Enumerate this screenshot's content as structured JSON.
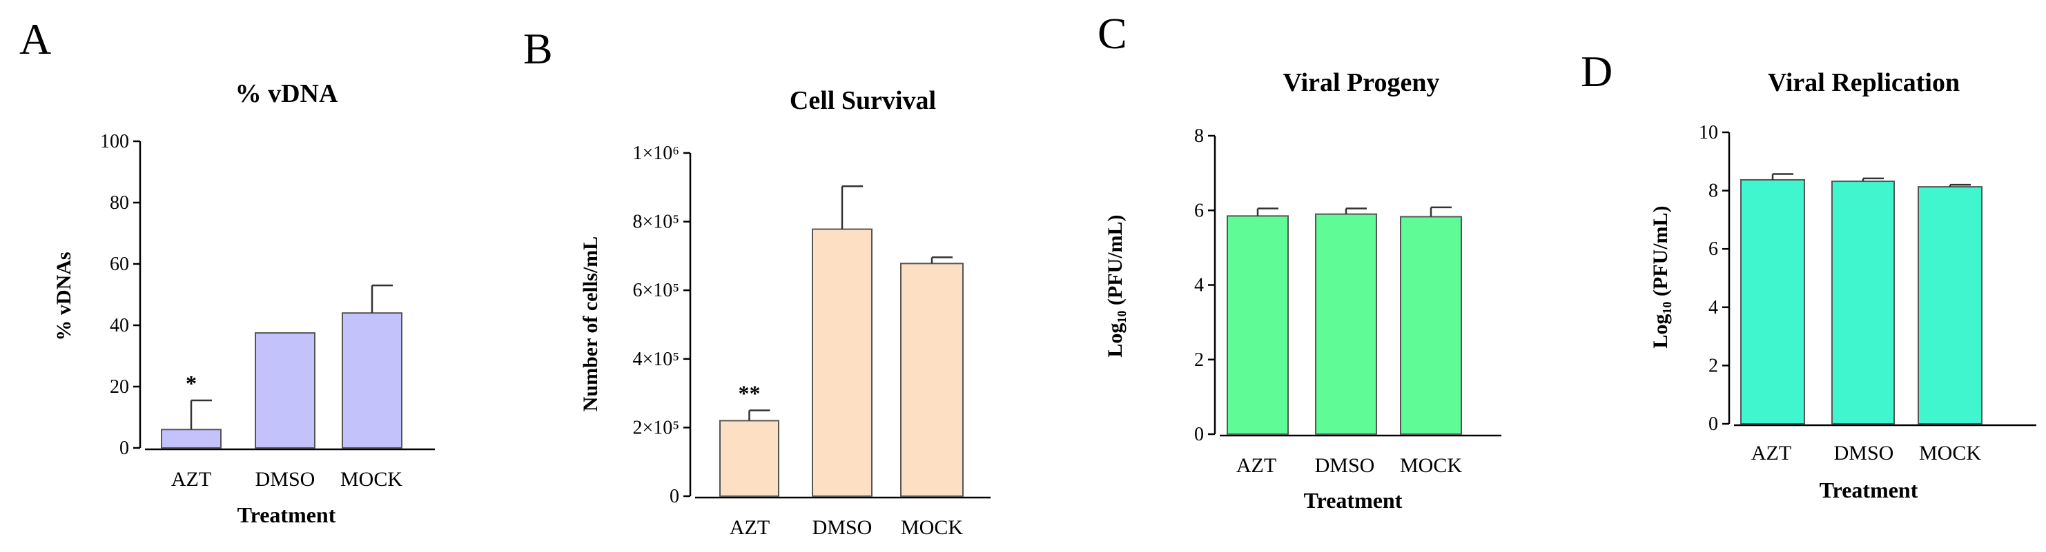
{
  "chart_data": [
    {
      "type": "bar",
      "panel": "A",
      "title": "% vDNA",
      "xlabel": "Treatment",
      "ylabel": "% vDNAs",
      "categories": [
        "AZT",
        "DMSO",
        "MOCK"
      ],
      "values": [
        6,
        37.5,
        44
      ],
      "errors": [
        9.5,
        0,
        9
      ],
      "annotations": [
        "*",
        "",
        ""
      ],
      "ylim": [
        0,
        100
      ],
      "yticks": [
        "0",
        "20",
        "40",
        "60",
        "80",
        "100"
      ],
      "ytick_values": [
        0,
        20,
        40,
        60,
        80,
        100
      ],
      "bar_color": "#c4c2fb"
    },
    {
      "type": "bar",
      "panel": "B",
      "title": "Cell Survival",
      "xlabel": "Treatment",
      "ylabel": "Number of cells/mL",
      "categories": [
        "AZT",
        "DMSO",
        "MOCK"
      ],
      "values": [
        220000,
        778000,
        678000
      ],
      "errors": [
        30000,
        125000,
        18000
      ],
      "annotations": [
        "**",
        "",
        ""
      ],
      "ylim": [
        0,
        1000000
      ],
      "yticks": [
        "0",
        "2×10⁵",
        "4×10⁵",
        "6×10⁵",
        "8×10⁵",
        "1×10⁶"
      ],
      "ytick_values": [
        0,
        200000,
        400000,
        600000,
        800000,
        1000000
      ],
      "bar_color": "#fde0c3"
    },
    {
      "type": "bar",
      "panel": "C",
      "title": "Viral Progeny",
      "xlabel": "Treatment",
      "ylabel": "Log₁₀ (PFU/mL)",
      "categories": [
        "AZT",
        "DMSO",
        "MOCK"
      ],
      "values": [
        5.85,
        5.9,
        5.83
      ],
      "errors": [
        0.2,
        0.15,
        0.25
      ],
      "annotations": [
        "",
        "",
        ""
      ],
      "ylim": [
        0,
        8
      ],
      "yticks": [
        "0",
        "2",
        "4",
        "6",
        "8"
      ],
      "ytick_values": [
        0,
        2,
        4,
        6,
        8
      ],
      "bar_color": "#5ffb97"
    },
    {
      "type": "bar",
      "panel": "D",
      "title": "Viral Replication",
      "xlabel": "Treatment",
      "ylabel": "Log₁₀ (PFU/mL)",
      "categories": [
        "AZT",
        "DMSO",
        "MOCK"
      ],
      "values": [
        8.37,
        8.32,
        8.13
      ],
      "errors": [
        0.2,
        0.1,
        0.07
      ],
      "annotations": [
        "",
        "",
        ""
      ],
      "ylim": [
        0,
        10
      ],
      "yticks": [
        "0",
        "2",
        "4",
        "6",
        "8",
        "10"
      ],
      "ytick_values": [
        0,
        2,
        4,
        6,
        8,
        10
      ],
      "bar_color": "#3ff6cf"
    }
  ]
}
